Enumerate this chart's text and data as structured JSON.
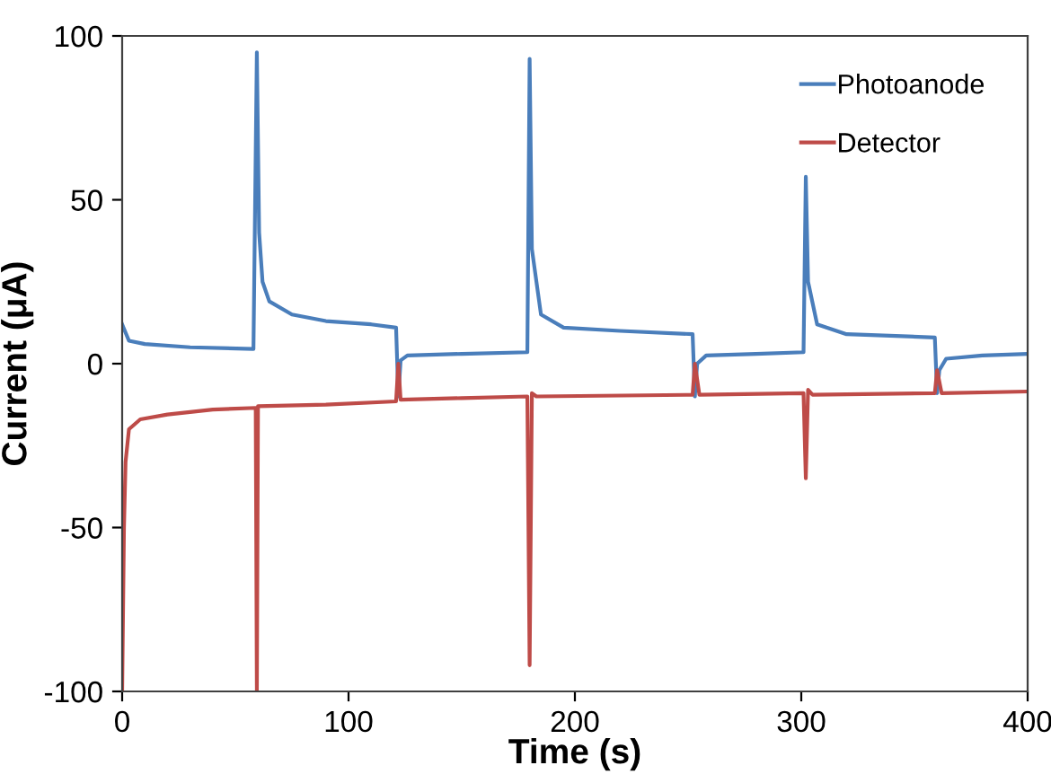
{
  "chart_data": {
    "type": "line",
    "xlabel": "Time (s)",
    "ylabel": "Current (μA)",
    "xlim": [
      0,
      400
    ],
    "ylim": [
      -100,
      100
    ],
    "xticks": [
      0,
      100,
      200,
      300,
      400
    ],
    "yticks": [
      -100,
      -50,
      0,
      50,
      100
    ],
    "grid": false,
    "legend": "top right",
    "marker": "none",
    "line_style": "solid",
    "series": [
      {
        "name": "Photoanode",
        "color": "#4a7ebb",
        "x": [
          0,
          3,
          10,
          30,
          58,
          59.5,
          60.5,
          62,
          65,
          75,
          90,
          110,
          121,
          122,
          123,
          126,
          150,
          179,
          180,
          181,
          185,
          195,
          220,
          252,
          253,
          254,
          258,
          280,
          301,
          302,
          303,
          307,
          320,
          359,
          360,
          361,
          364,
          380,
          400
        ],
        "values": [
          12,
          7,
          6,
          5,
          4.5,
          95,
          40,
          25,
          19,
          15,
          13,
          12,
          11,
          -10,
          1,
          2.5,
          3,
          3.5,
          93,
          35,
          15,
          11,
          10,
          9,
          -10,
          0,
          2.5,
          3,
          3.5,
          57,
          25,
          12,
          9,
          8,
          -9,
          -2,
          1.5,
          2.5,
          3
        ]
      },
      {
        "name": "Detector",
        "color": "#be4b48",
        "x": [
          0,
          0.8,
          1.5,
          3,
          8,
          20,
          40,
          59,
          59.5,
          60,
          90,
          121,
          122,
          123,
          150,
          179,
          180,
          181,
          183,
          252,
          253,
          255,
          301,
          302,
          303,
          305,
          359,
          360,
          362,
          400
        ],
        "values": [
          -100,
          -50,
          -30,
          -20,
          -17,
          -15.5,
          -14,
          -13.5,
          -100,
          -13,
          -12.5,
          -11.5,
          0,
          -11,
          -10.5,
          -10,
          -92,
          -9,
          -10,
          -9.5,
          0,
          -9.5,
          -9,
          -35,
          -8,
          -9.5,
          -9,
          -2,
          -9,
          -8.5
        ]
      }
    ]
  }
}
